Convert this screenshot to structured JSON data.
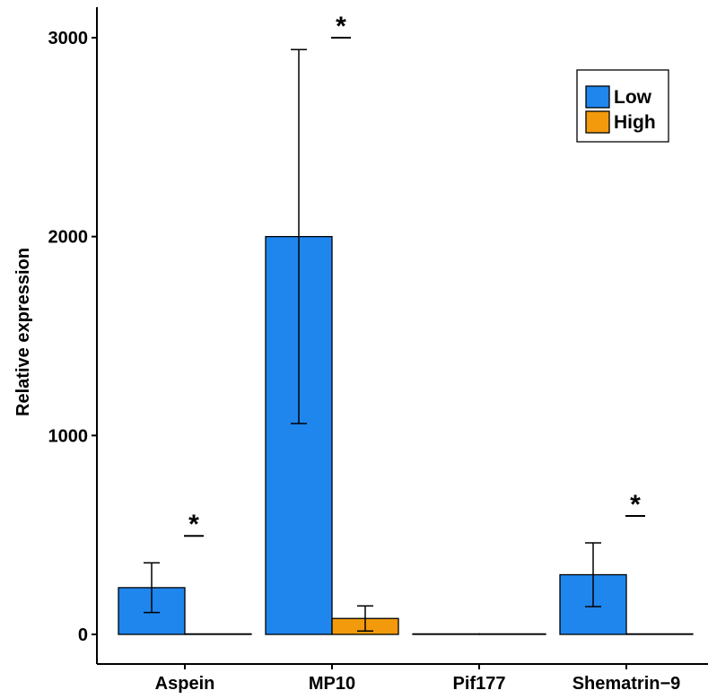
{
  "chart_data": {
    "type": "bar",
    "title": "",
    "xlabel": "",
    "ylabel": "Relative expression",
    "ylim": [
      -140,
      3160
    ],
    "yticks": [
      0,
      1000,
      2000,
      3000
    ],
    "grid": false,
    "legend_position": "top-right",
    "categories": [
      "Aspein",
      "MP10",
      "Pif177",
      "Shematrin−9"
    ],
    "series": [
      {
        "name": "Low",
        "color": "#1f86ee",
        "values": [
          235,
          2000,
          0,
          300
        ],
        "error": [
          125,
          940,
          0,
          160
        ]
      },
      {
        "name": "High",
        "color": "#f29a0c",
        "values": [
          2,
          80,
          0,
          1
        ],
        "error": [
          1,
          63,
          0,
          1
        ]
      }
    ],
    "significance": [
      {
        "category": "Aspein",
        "label": "*"
      },
      {
        "category": "MP10",
        "label": "*"
      },
      {
        "category": "Shematrin−9",
        "label": "*"
      }
    ]
  }
}
